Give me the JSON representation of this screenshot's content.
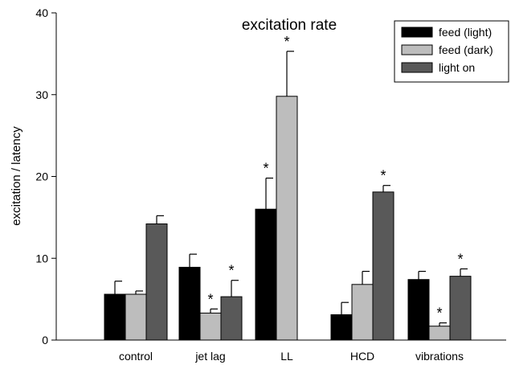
{
  "chart_data": {
    "type": "bar",
    "title": "excitation rate",
    "xlabel": "",
    "ylabel": "excitation / latency",
    "ylim": [
      0,
      40
    ],
    "yticks": [
      0,
      10,
      20,
      30,
      40
    ],
    "categories": [
      "control",
      "jet lag",
      "LL",
      "HCD",
      "vibrations"
    ],
    "series": [
      {
        "name": "feed (light)",
        "color": "#000000",
        "values": [
          5.6,
          8.9,
          16.0,
          3.1,
          7.4
        ],
        "errors": [
          1.6,
          1.6,
          3.8,
          1.5,
          1.0
        ],
        "significant": [
          false,
          false,
          true,
          false,
          false
        ]
      },
      {
        "name": "feed (dark)",
        "color": "#bdbdbd",
        "values": [
          5.6,
          3.3,
          29.8,
          6.8,
          1.7
        ],
        "errors": [
          0.4,
          0.5,
          5.5,
          1.6,
          0.4
        ],
        "significant": [
          false,
          true,
          true,
          false,
          true
        ]
      },
      {
        "name": "light on",
        "color": "#595959",
        "values": [
          14.2,
          5.3,
          null,
          18.1,
          7.8
        ],
        "errors": [
          1.0,
          2.0,
          null,
          0.8,
          0.9
        ],
        "significant": [
          false,
          true,
          false,
          true,
          true
        ]
      }
    ],
    "significance_marker": "*",
    "legend_position": "top-right",
    "grid": false
  }
}
